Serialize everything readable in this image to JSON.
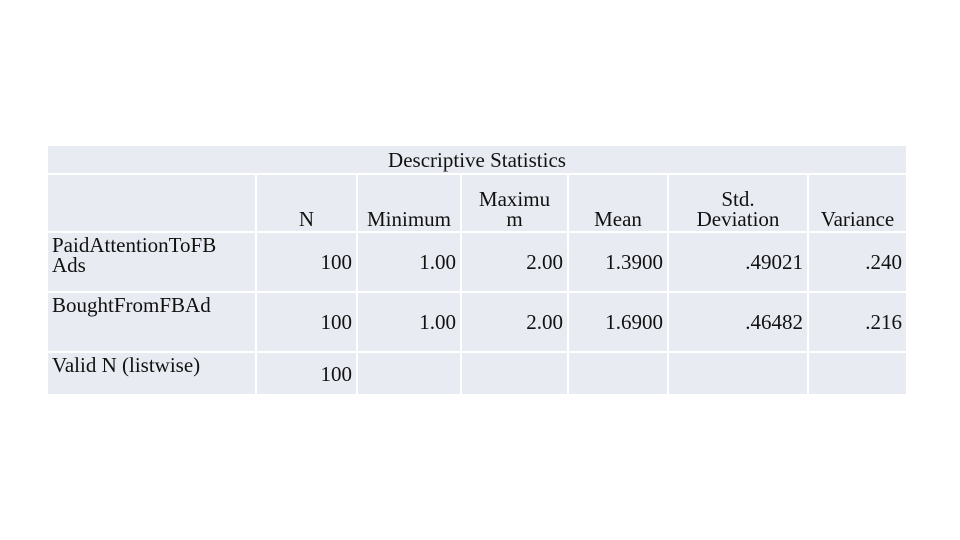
{
  "table": {
    "title": "Descriptive Statistics",
    "columns": [
      "N",
      "Minimum",
      "Maximu\nm",
      "Mean",
      "Std.\nDeviation",
      "Variance"
    ],
    "rows": [
      {
        "label": "PaidAttentionToFB\nAds",
        "cells": [
          "100",
          "1.00",
          "2.00",
          "1.3900",
          ".49021",
          ".240"
        ]
      },
      {
        "label": "BoughtFromFBAd",
        "cells": [
          "100",
          "1.00",
          "2.00",
          "1.6900",
          ".46482",
          ".216"
        ]
      },
      {
        "label": "Valid N (listwise)",
        "cells": [
          "100"
        ]
      }
    ]
  }
}
